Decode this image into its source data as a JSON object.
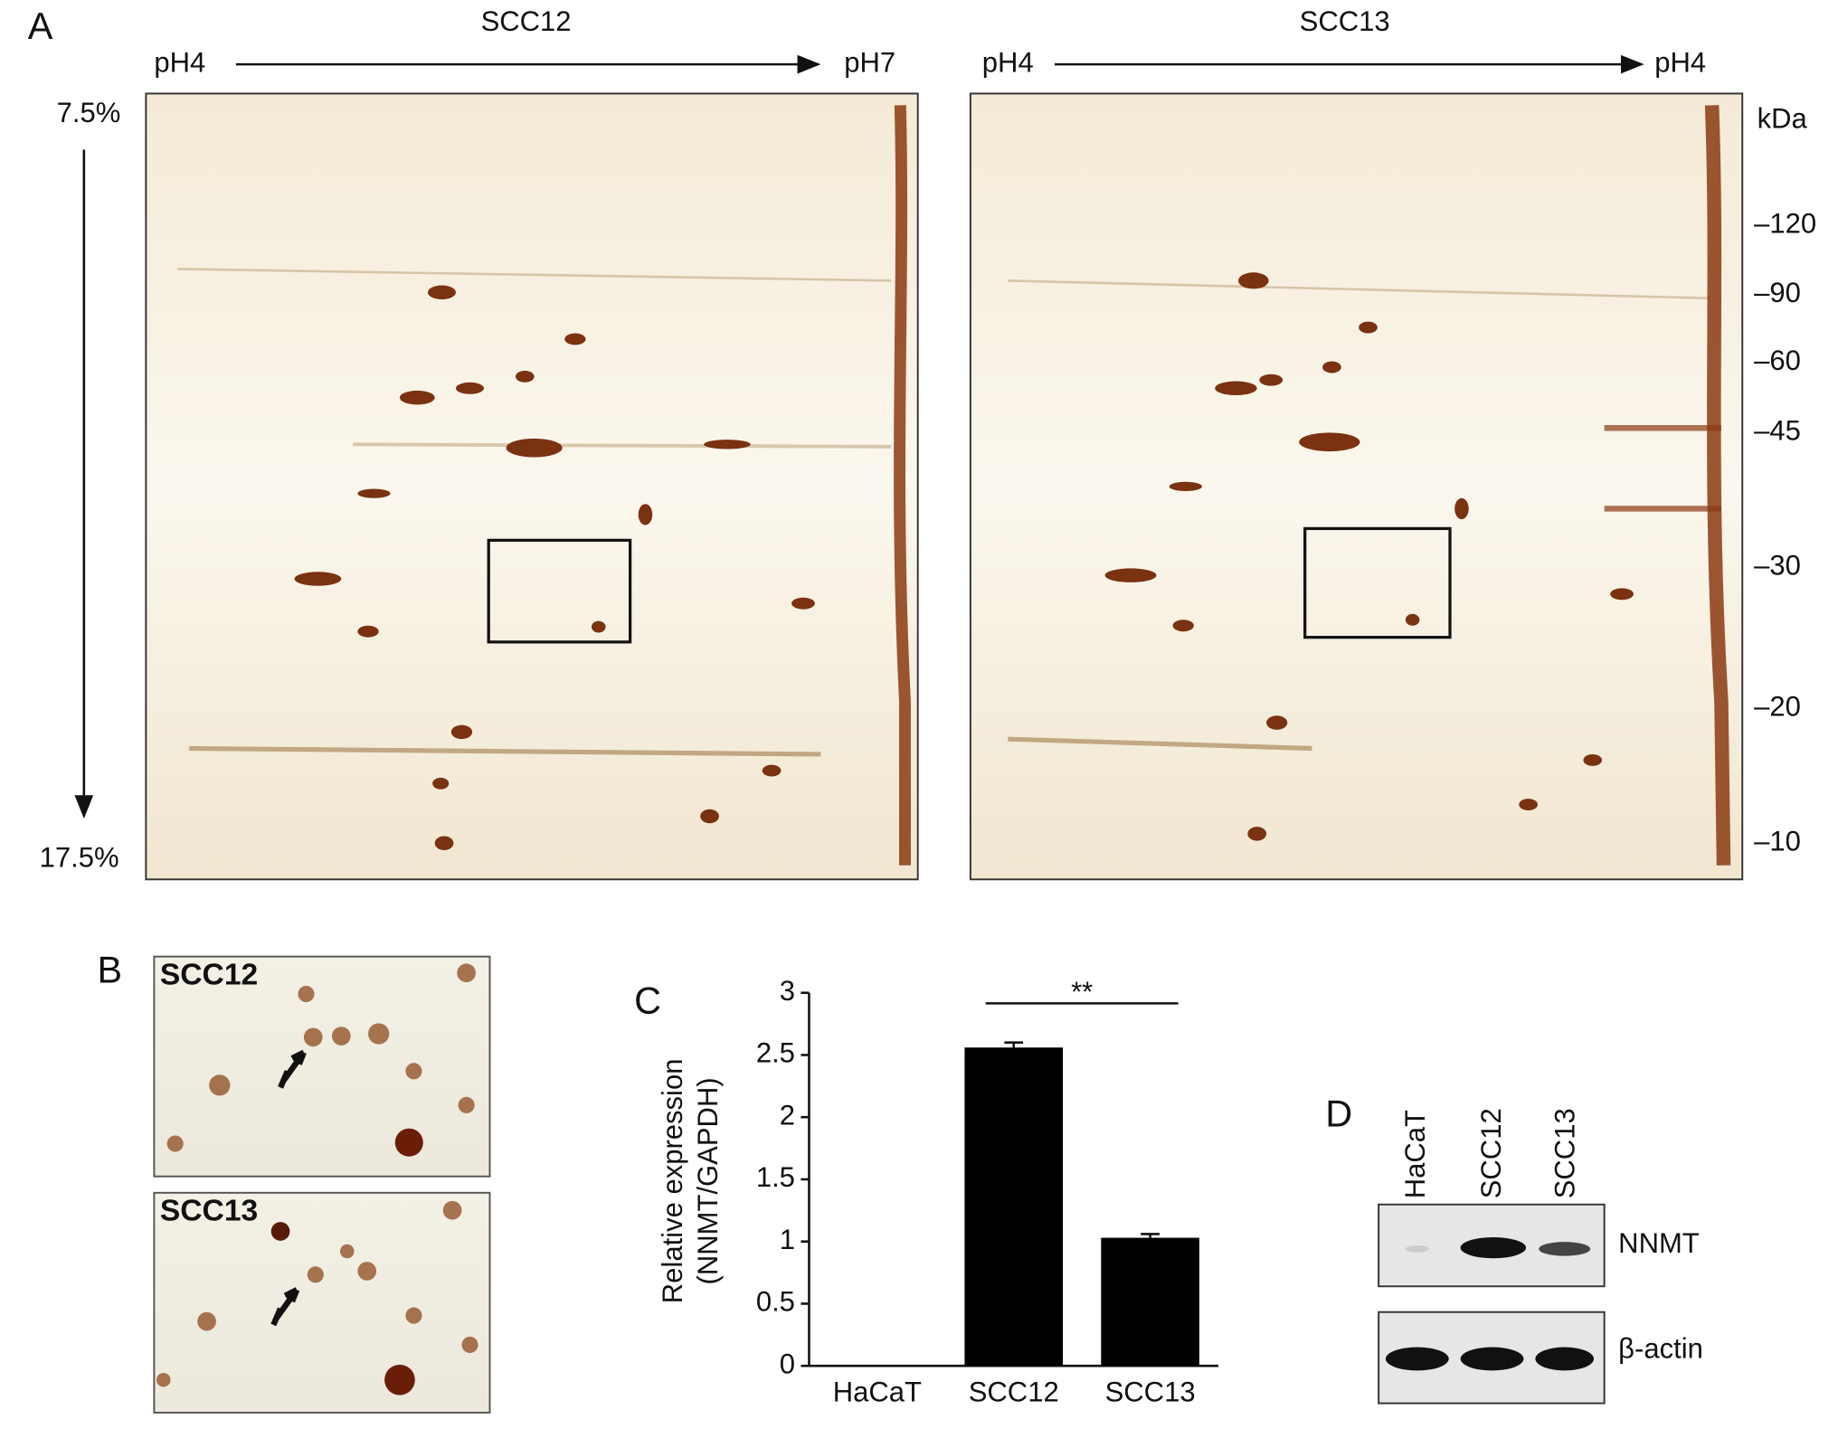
{
  "panel_a": {
    "label": "A",
    "gels": [
      {
        "title": "SCC12",
        "ph_left": "pH4",
        "ph_right": "pH7"
      },
      {
        "title": "SCC13",
        "ph_left": "pH4",
        "ph_right": "pH4"
      }
    ],
    "gradient_top": "7.5%",
    "gradient_bottom": "17.5%",
    "mw_unit": "kDa",
    "mw_markers": [
      "–120",
      "–90",
      "–60",
      "–45",
      "–30",
      "–20",
      "–10"
    ]
  },
  "panel_b": {
    "label": "B",
    "insets": [
      "SCC12",
      "SCC13"
    ]
  },
  "chart_data": {
    "type": "bar",
    "panel_label": "C",
    "y_label": [
      "Relative expression",
      "(NNMT/GAPDH)"
    ],
    "categories": [
      "HaCaT",
      "SCC12",
      "SCC13"
    ],
    "values": [
      0,
      2.56,
      1.03
    ],
    "errors": [
      0,
      0.04,
      0.03
    ],
    "color": "#000000",
    "ylim": [
      0,
      3
    ],
    "yticks": [
      0,
      0.5,
      1,
      1.5,
      2,
      2.5,
      3
    ],
    "annotation": "**"
  },
  "panel_d": {
    "label": "D",
    "lanes": [
      "HaCaT",
      "SCC12",
      "SCC13"
    ],
    "bands": [
      "NNMT",
      "β-actin"
    ]
  }
}
